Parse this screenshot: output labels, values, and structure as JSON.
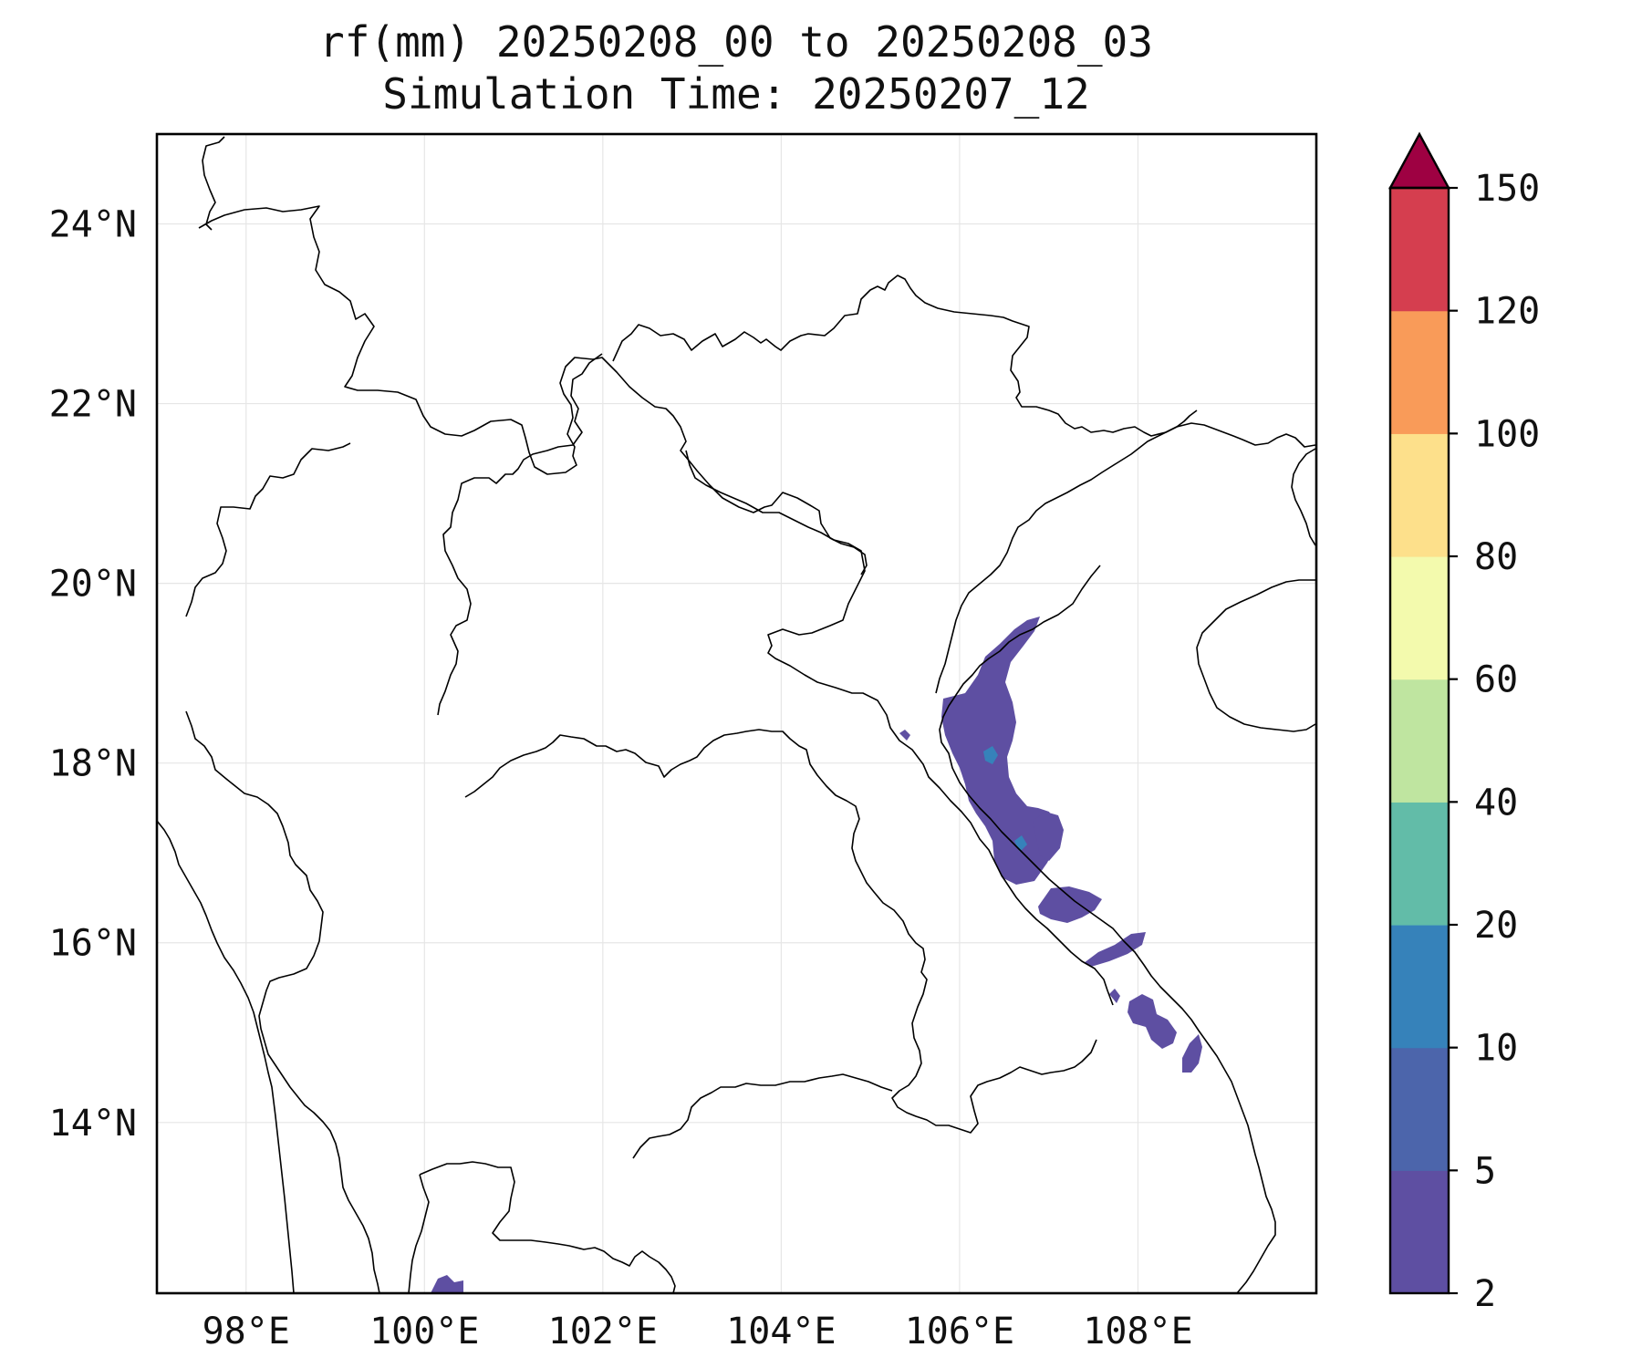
{
  "title": {
    "line1": "rf(mm) 20250208_00 to 20250208_03",
    "line2": "Simulation Time: 20250207_12"
  },
  "map": {
    "lon_range": [
      97,
      110
    ],
    "lat_range": [
      12.1,
      25
    ],
    "lon_ticks": [
      {
        "value": 98,
        "label": "98°E"
      },
      {
        "value": 100,
        "label": "100°E"
      },
      {
        "value": 102,
        "label": "102°E"
      },
      {
        "value": 104,
        "label": "104°E"
      },
      {
        "value": 106,
        "label": "106°E"
      },
      {
        "value": 108,
        "label": "108°E"
      }
    ],
    "lat_ticks": [
      {
        "value": 24,
        "label": "24°N"
      },
      {
        "value": 22,
        "label": "22°N"
      },
      {
        "value": 20,
        "label": "20°N"
      },
      {
        "value": 18,
        "label": "18°N"
      },
      {
        "value": 16,
        "label": "16°N"
      },
      {
        "value": 14,
        "label": "14°N"
      }
    ],
    "gridlines": true
  },
  "colorbar": {
    "extend": "max",
    "levels": [
      {
        "label": "2",
        "color": "#5e4fa2"
      },
      {
        "label": "5",
        "color": "#4c65ab"
      },
      {
        "label": "10",
        "color": "#3682ba"
      },
      {
        "label": "20",
        "color": "#62bca8"
      },
      {
        "label": "40",
        "color": "#bfe5a0"
      },
      {
        "label": "60",
        "color": "#f3faad"
      },
      {
        "label": "80",
        "color": "#fde08b"
      },
      {
        "label": "100",
        "color": "#f99b59"
      },
      {
        "label": "120",
        "color": "#d53e4f"
      },
      {
        "label": "150",
        "color": "#9e0142"
      }
    ]
  },
  "rain_colors": {
    "light": "#5e4fa2",
    "moderate": "#4c65ab",
    "heavy": "#3682ba"
  }
}
